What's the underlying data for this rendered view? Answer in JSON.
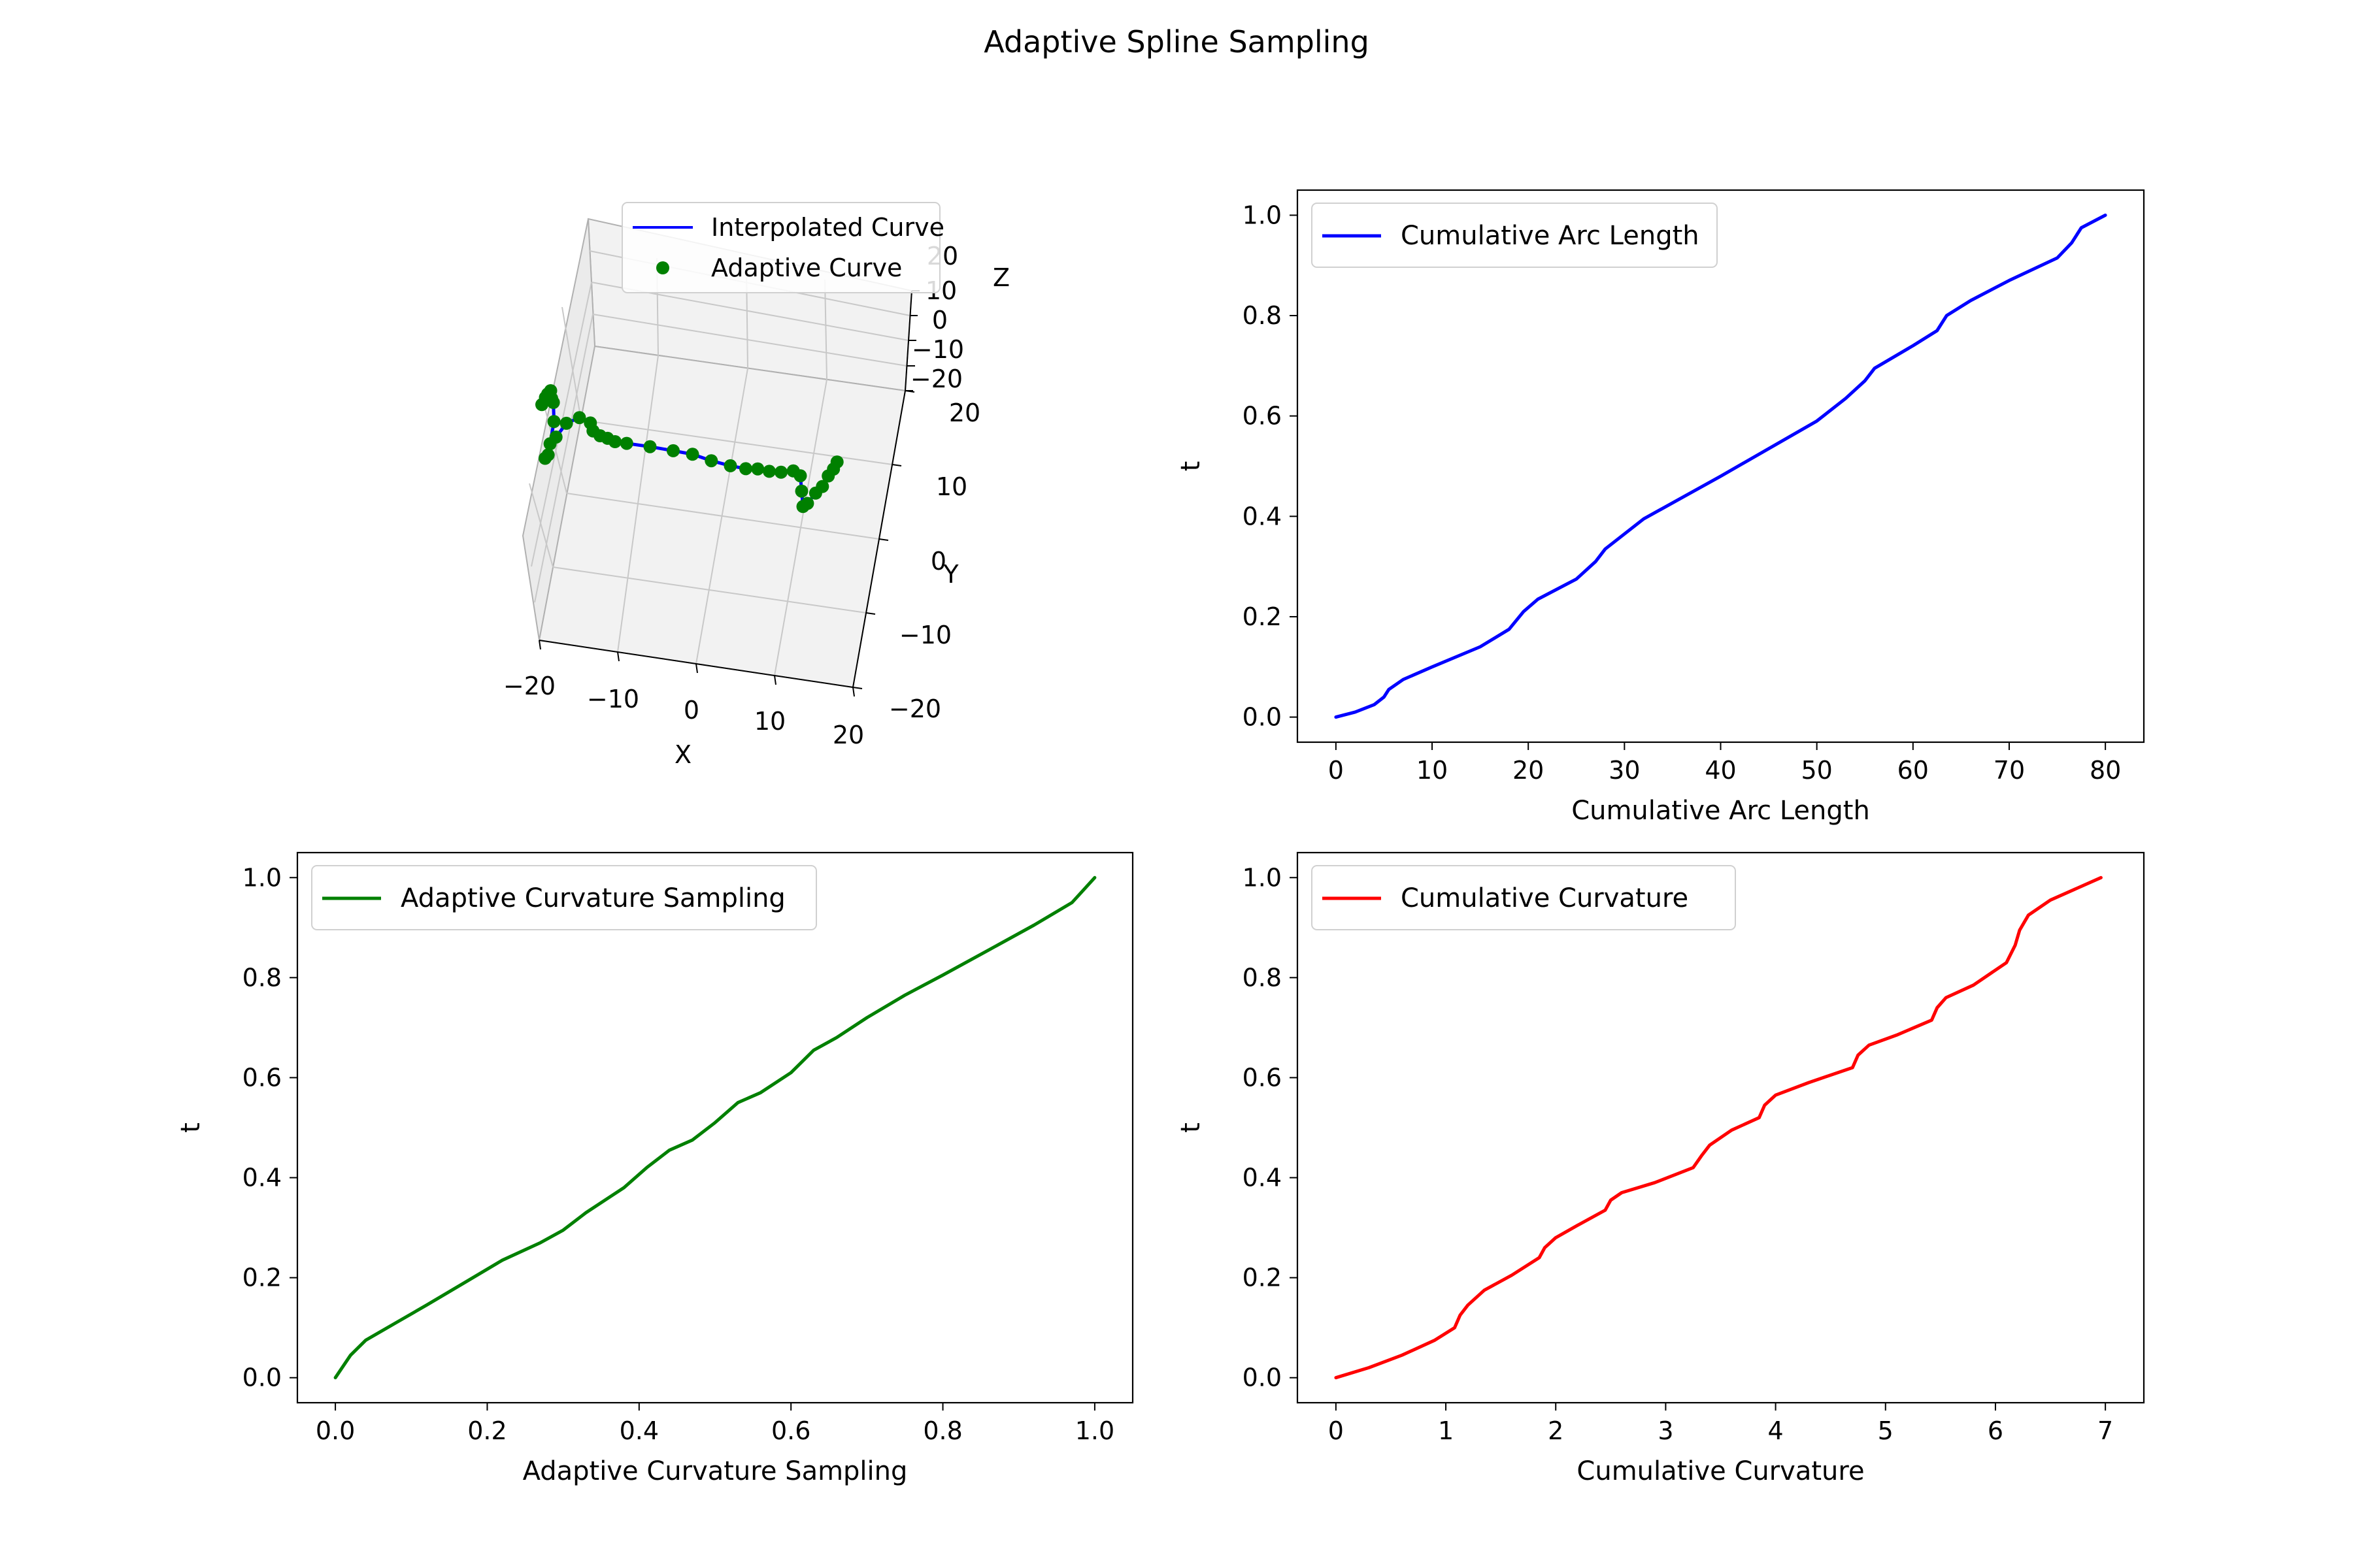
{
  "figure": {
    "title": "Adaptive Spline Sampling"
  },
  "chart_data": [
    {
      "type": "line3d",
      "title": "",
      "xlabel": "X",
      "ylabel": "Y",
      "zlabel": "Z",
      "xlim": [
        -20,
        20
      ],
      "ylim": [
        -20,
        20
      ],
      "zlim": [
        -20,
        20
      ],
      "xticks": [
        "−20",
        "−10",
        "0",
        "10",
        "20"
      ],
      "yticks": [
        "−20",
        "−10",
        "0",
        "10",
        "20"
      ],
      "zticks": [
        "−20",
        "−10",
        "0",
        "10",
        "20"
      ],
      "grid": true,
      "legend": {
        "placement": "top-right",
        "entries": [
          {
            "label": "Interpolated Curve",
            "color": "#0000ff",
            "marker": "line"
          },
          {
            "label": "Adaptive Curve",
            "color": "#008000",
            "marker": "dot"
          }
        ]
      },
      "series": [
        {
          "name": "Interpolated Curve",
          "color": "#0000ff",
          "x": [
            -19.5,
            -19.2,
            -19,
            -18.7,
            -18.4,
            -18.1,
            -17.6,
            -17.6,
            -17.9,
            -17.6,
            -17,
            -16,
            -14.5,
            -13,
            -12.5,
            -11.5,
            -10.5,
            -9.5,
            -8,
            -5,
            -2,
            0.5,
            3,
            5.5,
            7.5,
            9,
            10.5,
            12,
            13.5,
            14.5,
            15,
            15.5,
            16,
            16.8,
            17.5,
            18,
            18.5,
            18.8
          ],
          "y": [
            13,
            14,
            14.5,
            15,
            14,
            13.5,
            11,
            8,
            6,
            6.5,
            9,
            11,
            12,
            11.5,
            10.5,
            10,
            9.8,
            9.5,
            9.5,
            9.5,
            9.4,
            9.3,
            8.8,
            8.5,
            8.4,
            8.6,
            8.5,
            8.6,
            9,
            8.5,
            6.5,
            4.5,
            5,
            6.5,
            7.5,
            9,
            10,
            11
          ],
          "z": [
            0,
            0,
            0,
            0,
            0,
            0,
            0,
            0,
            0,
            0,
            0,
            0,
            0,
            0,
            0,
            0,
            0,
            0,
            0,
            0,
            0,
            0,
            0,
            0,
            0,
            0,
            0,
            0,
            0,
            0,
            0,
            0,
            0,
            0,
            0,
            0,
            0,
            0
          ]
        },
        {
          "name": "Adaptive Curve",
          "color": "#008000",
          "x": [
            -19.5,
            -19.2,
            -19,
            -18.7,
            -18.4,
            -18.1,
            -17.6,
            -17.6,
            -17.9,
            -17.6,
            -17,
            -16,
            -14.5,
            -13,
            -12.5,
            -11.5,
            -10.5,
            -9.5,
            -8,
            -5,
            -2,
            0.5,
            3,
            5.5,
            7.5,
            9,
            10.5,
            12,
            13.5,
            14.5,
            15,
            15.5,
            16,
            16.8,
            17.5,
            18,
            18.5,
            18.8
          ],
          "y": [
            13,
            14,
            14.5,
            15,
            14,
            13.5,
            11,
            8,
            6,
            6.5,
            9,
            11,
            12,
            11.5,
            10.5,
            10,
            9.8,
            9.5,
            9.5,
            9.5,
            9.4,
            9.3,
            8.8,
            8.5,
            8.4,
            8.6,
            8.5,
            8.6,
            9,
            8.5,
            6.5,
            4.5,
            5,
            6.5,
            7.5,
            9,
            10,
            11
          ],
          "z": [
            0,
            0,
            0,
            0,
            0,
            0,
            0,
            0,
            0,
            0,
            0,
            0,
            0,
            0,
            0,
            0,
            0,
            0,
            0,
            0,
            0,
            0,
            0,
            0,
            0,
            0,
            0,
            0,
            0,
            0,
            0,
            0,
            0,
            0,
            0,
            0,
            0,
            0
          ]
        }
      ]
    },
    {
      "type": "line",
      "title": "",
      "xlabel": "Cumulative Arc Length",
      "ylabel": "t",
      "xlim": [
        -4,
        84
      ],
      "ylim": [
        -0.05,
        1.05
      ],
      "xticks": [
        0,
        10,
        20,
        30,
        40,
        50,
        60,
        70,
        80
      ],
      "yticks": [
        0.0,
        0.2,
        0.4,
        0.6,
        0.8,
        1.0
      ],
      "grid": false,
      "legend": {
        "placement": "top-left",
        "entries": [
          {
            "label": "Cumulative Arc Length",
            "color": "#0000ff",
            "marker": "line"
          }
        ]
      },
      "series": [
        {
          "name": "Cumulative Arc Length",
          "color": "#0000ff",
          "x": [
            0,
            2,
            4,
            5,
            5.5,
            7,
            10,
            15,
            18,
            19.5,
            21,
            25,
            27,
            28,
            32,
            40,
            50,
            53,
            55,
            56,
            60,
            62.5,
            63.5,
            66,
            70,
            75,
            76.5,
            77.5,
            80
          ],
          "y": [
            0,
            0.01,
            0.025,
            0.04,
            0.055,
            0.075,
            0.1,
            0.14,
            0.175,
            0.21,
            0.235,
            0.275,
            0.31,
            0.335,
            0.395,
            0.48,
            0.59,
            0.635,
            0.67,
            0.695,
            0.74,
            0.77,
            0.8,
            0.83,
            0.87,
            0.915,
            0.945,
            0.975,
            1.0
          ]
        }
      ]
    },
    {
      "type": "line",
      "title": "",
      "xlabel": "Adaptive Curvature Sampling",
      "ylabel": "t",
      "xlim": [
        -0.05,
        1.05
      ],
      "ylim": [
        -0.05,
        1.05
      ],
      "xticks": [
        "0.0",
        "0.2",
        "0.4",
        "0.6",
        "0.8",
        "1.0"
      ],
      "yticks": [
        "0.0",
        "0.2",
        "0.4",
        "0.6",
        "0.8",
        "1.0"
      ],
      "grid": false,
      "legend": {
        "placement": "top-left",
        "entries": [
          {
            "label": "Adaptive Curvature Sampling",
            "color": "#008000",
            "marker": "line"
          }
        ]
      },
      "series": [
        {
          "name": "Adaptive Curvature Sampling",
          "color": "#008000",
          "x": [
            0,
            0.02,
            0.04,
            0.08,
            0.12,
            0.17,
            0.22,
            0.27,
            0.3,
            0.33,
            0.36,
            0.38,
            0.41,
            0.44,
            0.47,
            0.5,
            0.53,
            0.56,
            0.6,
            0.63,
            0.66,
            0.7,
            0.75,
            0.8,
            0.86,
            0.92,
            0.97,
            1.0
          ],
          "y": [
            0,
            0.045,
            0.075,
            0.11,
            0.145,
            0.19,
            0.235,
            0.27,
            0.295,
            0.33,
            0.36,
            0.38,
            0.42,
            0.455,
            0.475,
            0.51,
            0.55,
            0.57,
            0.61,
            0.655,
            0.68,
            0.72,
            0.765,
            0.805,
            0.855,
            0.905,
            0.95,
            1.0
          ]
        }
      ]
    },
    {
      "type": "line",
      "title": "",
      "xlabel": "Cumulative Curvature",
      "ylabel": "t",
      "xlim": [
        -0.35,
        7.35
      ],
      "ylim": [
        -0.05,
        1.05
      ],
      "xticks": [
        0,
        1,
        2,
        3,
        4,
        5,
        6,
        7
      ],
      "yticks": [
        "0.0",
        "0.2",
        "0.4",
        "0.6",
        "0.8",
        "1.0"
      ],
      "grid": false,
      "legend": {
        "placement": "top-left",
        "entries": [
          {
            "label": "Cumulative Curvature",
            "color": "#ff0000",
            "marker": "line"
          }
        ]
      },
      "series": [
        {
          "name": "Cumulative Curvature",
          "color": "#ff0000",
          "x": [
            0,
            0.3,
            0.6,
            0.9,
            1.08,
            1.13,
            1.2,
            1.35,
            1.6,
            1.85,
            1.9,
            2.0,
            2.2,
            2.45,
            2.5,
            2.6,
            2.9,
            3.25,
            3.33,
            3.4,
            3.6,
            3.85,
            3.9,
            4.0,
            4.3,
            4.7,
            4.75,
            4.85,
            5.1,
            5.42,
            5.47,
            5.55,
            5.8,
            6.1,
            6.18,
            6.22,
            6.3,
            6.5,
            6.96
          ],
          "y": [
            0,
            0.02,
            0.045,
            0.075,
            0.1,
            0.125,
            0.145,
            0.175,
            0.205,
            0.24,
            0.26,
            0.28,
            0.305,
            0.335,
            0.355,
            0.37,
            0.39,
            0.42,
            0.445,
            0.465,
            0.495,
            0.52,
            0.545,
            0.565,
            0.59,
            0.62,
            0.645,
            0.665,
            0.685,
            0.715,
            0.74,
            0.76,
            0.785,
            0.83,
            0.865,
            0.895,
            0.925,
            0.955,
            1.0
          ]
        }
      ]
    }
  ]
}
